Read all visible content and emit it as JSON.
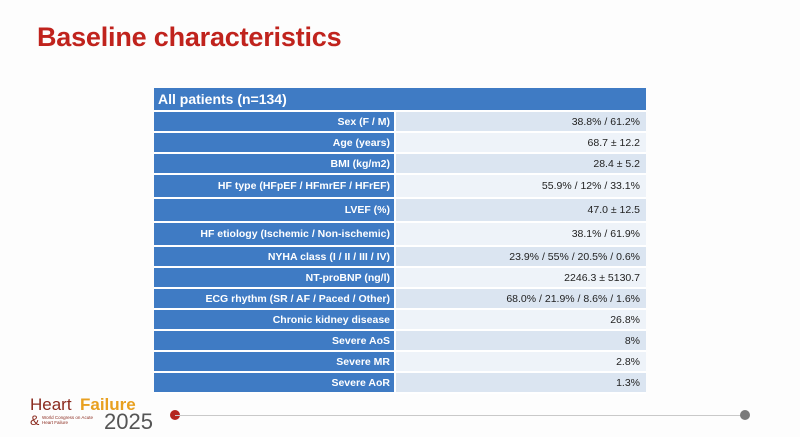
{
  "slide": {
    "title": "Baseline characteristics"
  },
  "table": {
    "header": "All patients (n=134)",
    "rows": [
      {
        "label": "Sex (F / M)",
        "value": "38.8% / 61.2%"
      },
      {
        "label": "Age (years)",
        "value": "68.7 ± 12.2"
      },
      {
        "label": "BMI (kg/m2)",
        "value": "28.4 ± 5.2"
      },
      {
        "label": "HF type (HFpEF / HFmrEF / HFrEF)",
        "value": "55.9% / 12% / 33.1%"
      },
      {
        "label": "LVEF (%)",
        "value": "47.0 ± 12.5"
      },
      {
        "label": "HF etiology (Ischemic / Non-ischemic)",
        "value": "38.1% / 61.9%"
      },
      {
        "label": "NYHA class (I / II / III / IV)",
        "value": "23.9% / 55% / 20.5% / 0.6%"
      },
      {
        "label": "NT-proBNP (ng/l)",
        "value": "2246.3 ± 5130.7"
      },
      {
        "label": "ECG rhythm (SR / AF / Paced / Other)",
        "value": "68.0% / 21.9% / 8.6% / 1.6%"
      },
      {
        "label": "Chronic kidney disease",
        "value": "26.8%"
      },
      {
        "label": "Severe AoS",
        "value": "8%"
      },
      {
        "label": "Severe MR",
        "value": "2.8%"
      },
      {
        "label": "Severe AoR",
        "value": "1.3%"
      }
    ]
  },
  "footer": {
    "logo_heart": "Heart",
    "logo_failure": "Failure",
    "logo_amp": "&",
    "logo_small": "World Congress on Acute Heart Failure",
    "logo_year": "2025"
  },
  "colors": {
    "title": "#c0231d",
    "header": "#3f7bc4",
    "accent_dot": "#b5261e"
  }
}
